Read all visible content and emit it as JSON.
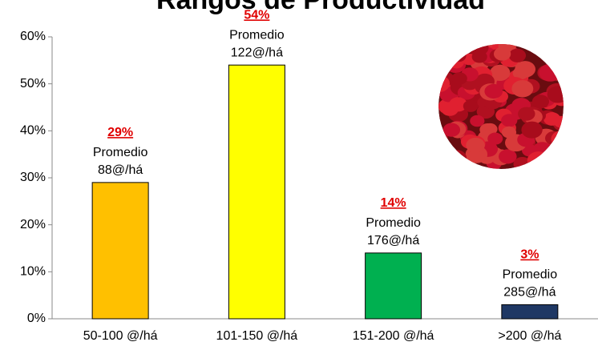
{
  "chart_data": {
    "type": "bar",
    "title": "Rangos de Productividad",
    "categories": [
      "50-100 @/há",
      "101-150 @/há",
      "151-200 @/há",
      ">200 @/há"
    ],
    "values": [
      29,
      54,
      14,
      3
    ],
    "value_labels": [
      "29%",
      "54%",
      "14%",
      "3%"
    ],
    "annotations": [
      [
        "Promedio",
        "88@/há"
      ],
      [
        "Promedio",
        "122@/há"
      ],
      [
        "Promedio",
        "176@/há"
      ],
      [
        "Promedio",
        "285@/há"
      ]
    ],
    "colors": [
      "#FFC000",
      "#FFFF00",
      "#00B050",
      "#1F3864"
    ],
    "ylim": [
      0,
      60
    ],
    "yticks": [
      {
        "value": 0,
        "label": "0%"
      },
      {
        "value": 10,
        "label": "10%"
      },
      {
        "value": 20,
        "label": "20%"
      },
      {
        "value": 30,
        "label": "30%"
      },
      {
        "value": 40,
        "label": "40%"
      },
      {
        "value": 50,
        "label": "50%"
      },
      {
        "value": 60,
        "label": "60%"
      }
    ],
    "grid": false
  }
}
